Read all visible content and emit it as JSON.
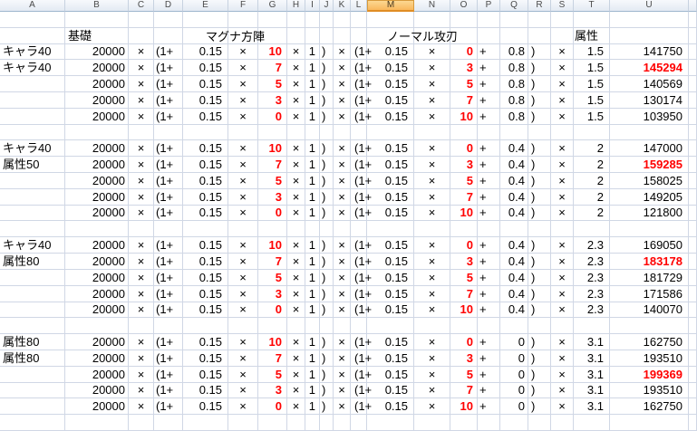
{
  "sheet": {
    "column_headers": [
      "A",
      "B",
      "C",
      "D",
      "E",
      "F",
      "G",
      "H",
      "I",
      "J",
      "K",
      "L",
      "M",
      "N",
      "O",
      "P",
      "Q",
      "R",
      "S",
      "T",
      "U"
    ],
    "selected_column": "M",
    "section_headers": {
      "base": "基礎",
      "magna": "マグナ方陣",
      "normal": "ノーマル攻刃",
      "attribute": "属性"
    },
    "formula_tokens": {
      "base_value": "20000",
      "times": "×",
      "open_plus": "(1+",
      "skill_rate": "0.15",
      "magna_mult": "1",
      "plus": "+",
      "close": ")"
    },
    "blocks": [
      {
        "labels": [
          "キャラ40",
          "キャラ40"
        ],
        "normal_bonus": "0.8",
        "attr_mult": "1.5",
        "rows": [
          {
            "magna_skill": "10",
            "normal_skill": "0",
            "result": "141750",
            "best": false
          },
          {
            "magna_skill": "7",
            "normal_skill": "3",
            "result": "145294",
            "best": true
          },
          {
            "magna_skill": "5",
            "normal_skill": "5",
            "result": "140569",
            "best": false
          },
          {
            "magna_skill": "3",
            "normal_skill": "7",
            "result": "130174",
            "best": false
          },
          {
            "magna_skill": "0",
            "normal_skill": "10",
            "result": "103950",
            "best": false
          }
        ]
      },
      {
        "labels": [
          "キャラ40",
          "属性50"
        ],
        "normal_bonus": "0.4",
        "attr_mult": "2",
        "rows": [
          {
            "magna_skill": "10",
            "normal_skill": "0",
            "result": "147000",
            "best": false
          },
          {
            "magna_skill": "7",
            "normal_skill": "3",
            "result": "159285",
            "best": true
          },
          {
            "magna_skill": "5",
            "normal_skill": "5",
            "result": "158025",
            "best": false
          },
          {
            "magna_skill": "3",
            "normal_skill": "7",
            "result": "149205",
            "best": false
          },
          {
            "magna_skill": "0",
            "normal_skill": "10",
            "result": "121800",
            "best": false
          }
        ]
      },
      {
        "labels": [
          "キャラ40",
          "属性80"
        ],
        "normal_bonus": "0.4",
        "attr_mult": "2.3",
        "rows": [
          {
            "magna_skill": "10",
            "normal_skill": "0",
            "result": "169050",
            "best": false
          },
          {
            "magna_skill": "7",
            "normal_skill": "3",
            "result": "183178",
            "best": true
          },
          {
            "magna_skill": "5",
            "normal_skill": "5",
            "result": "181729",
            "best": false
          },
          {
            "magna_skill": "3",
            "normal_skill": "7",
            "result": "171586",
            "best": false
          },
          {
            "magna_skill": "0",
            "normal_skill": "10",
            "result": "140070",
            "best": false
          }
        ]
      },
      {
        "labels": [
          "属性80",
          "属性80"
        ],
        "normal_bonus": "0",
        "attr_mult": "3.1",
        "rows": [
          {
            "magna_skill": "10",
            "normal_skill": "0",
            "result": "162750",
            "best": false
          },
          {
            "magna_skill": "7",
            "normal_skill": "3",
            "result": "193510",
            "best": false
          },
          {
            "magna_skill": "5",
            "normal_skill": "5",
            "result": "199369",
            "best": true
          },
          {
            "magna_skill": "3",
            "normal_skill": "7",
            "result": "193510",
            "best": false
          },
          {
            "magna_skill": "0",
            "normal_skill": "10",
            "result": "162750",
            "best": false
          }
        ]
      }
    ],
    "colors": {
      "highlight_red": "#FF0000",
      "gridline": "#D0D7E5",
      "header_border": "#9EB6CE",
      "selected_header_top": "#FCD892",
      "selected_header_bottom": "#F9B75C",
      "selected_header_border": "#E08D24"
    }
  }
}
